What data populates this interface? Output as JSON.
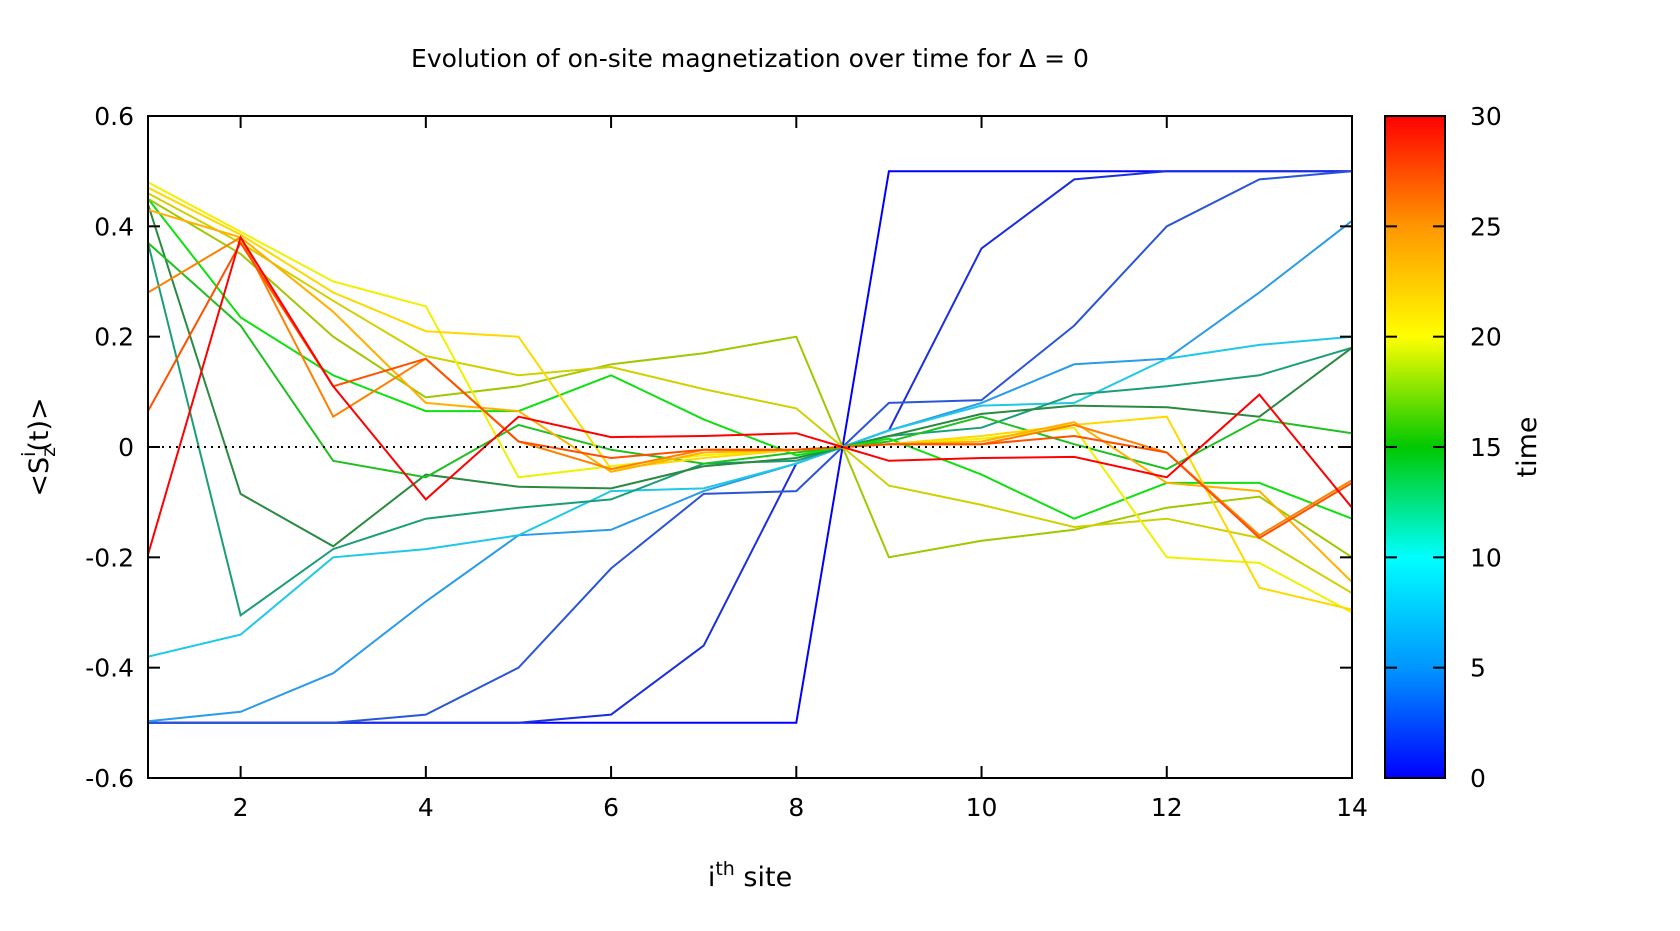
{
  "chart_data": {
    "type": "line",
    "title": "Evolution of on-site magnetization over time for Δ = 0",
    "xlabel": {
      "base": "i",
      "sup": "th",
      "rest": " site"
    },
    "ylabel": {
      "pre": "<S",
      "sub": "z",
      "sup": "i",
      "post": "(t)>"
    },
    "xlim": [
      1,
      14
    ],
    "ylim": [
      -0.6,
      0.6
    ],
    "xticks": [
      "2",
      "4",
      "6",
      "8",
      "10",
      "12",
      "14"
    ],
    "yticks": [
      "-0.6",
      "-0.4",
      "-0.2",
      "0",
      "0.2",
      "0.4",
      "0.6"
    ],
    "zero_line": true,
    "colorbar": {
      "label": "time",
      "range": [
        0,
        30
      ],
      "ticks": [
        "0",
        "5",
        "10",
        "15",
        "20",
        "25",
        "30"
      ],
      "stops": [
        "#0000ff",
        "#0096ff",
        "#00ffff",
        "#00c800",
        "#ffff00",
        "#ff9600",
        "#ff0000"
      ]
    },
    "x": [
      1,
      2,
      3,
      4,
      5,
      6,
      7,
      8,
      8.5,
      9,
      10,
      11,
      12,
      13,
      14
    ],
    "series": [
      {
        "time": 0,
        "color": "#0000ff",
        "values": [
          -0.5,
          -0.5,
          -0.5,
          -0.5,
          -0.5,
          -0.5,
          -0.5,
          -0.5,
          0,
          0.5,
          0.5,
          0.5,
          0.5,
          0.5,
          0.5
        ]
      },
      {
        "time": 2,
        "color": "#1a2ee0",
        "values": [
          -0.5,
          -0.5,
          -0.5,
          -0.5,
          -0.5,
          -0.485,
          -0.36,
          -0.03,
          0,
          0.03,
          0.36,
          0.485,
          0.5,
          0.5,
          0.5
        ]
      },
      {
        "time": 4,
        "color": "#2a55d8",
        "values": [
          -0.5,
          -0.5,
          -0.5,
          -0.485,
          -0.4,
          -0.22,
          -0.085,
          -0.08,
          0,
          0.08,
          0.085,
          0.22,
          0.4,
          0.485,
          0.5
        ]
      },
      {
        "time": 6,
        "color": "#2a9be8",
        "values": [
          -0.497,
          -0.48,
          -0.41,
          -0.28,
          -0.16,
          -0.15,
          -0.08,
          -0.03,
          0,
          0.03,
          0.08,
          0.15,
          0.16,
          0.28,
          0.41
        ]
      },
      {
        "time": 7,
        "color": "#20c8e8",
        "values": [
          -0.38,
          -0.34,
          -0.2,
          -0.185,
          -0.16,
          -0.08,
          -0.075,
          -0.03,
          0,
          0.03,
          0.075,
          0.08,
          0.16,
          0.185,
          0.2
        ]
      },
      {
        "time": 10,
        "color": "#1a9e78",
        "values": [
          0.37,
          -0.305,
          -0.185,
          -0.13,
          -0.11,
          -0.095,
          -0.03,
          -0.025,
          0,
          0.02,
          0.035,
          0.095,
          0.11,
          0.13,
          0.18
        ]
      },
      {
        "time": 12,
        "color": "#2a8a40",
        "values": [
          0.44,
          -0.085,
          -0.18,
          -0.05,
          -0.072,
          -0.075,
          -0.035,
          -0.02,
          0,
          0.02,
          0.06,
          0.075,
          0.072,
          0.055,
          0.18
        ]
      },
      {
        "time": 14,
        "color": "#20c020",
        "values": [
          0.37,
          0.22,
          -0.025,
          -0.055,
          0.04,
          -0.005,
          -0.03,
          -0.01,
          0,
          0.01,
          0.055,
          0.005,
          -0.04,
          0.05,
          0.025
        ]
      },
      {
        "time": 16,
        "color": "#10e010",
        "values": [
          0.45,
          0.235,
          0.13,
          0.065,
          0.065,
          0.13,
          0.05,
          -0.015,
          0,
          0.015,
          -0.05,
          -0.13,
          -0.065,
          -0.065,
          -0.13
        ]
      },
      {
        "time": 19,
        "color": "#a0c800",
        "values": [
          0.45,
          0.35,
          0.2,
          0.09,
          0.11,
          0.15,
          0.17,
          0.2,
          0,
          -0.2,
          -0.17,
          -0.15,
          -0.11,
          -0.09,
          -0.2
        ]
      },
      {
        "time": 21,
        "color": "#d0d000",
        "values": [
          0.46,
          0.37,
          0.265,
          0.165,
          0.13,
          0.145,
          0.105,
          0.07,
          0,
          -0.07,
          -0.105,
          -0.145,
          -0.13,
          -0.165,
          -0.265
        ]
      },
      {
        "time": 23,
        "color": "#f0f000",
        "values": [
          0.48,
          0.39,
          0.3,
          0.255,
          -0.055,
          -0.035,
          -0.015,
          -0.005,
          0,
          0.005,
          0.015,
          0.035,
          -0.2,
          -0.21,
          -0.3
        ]
      },
      {
        "time": 24,
        "color": "#ffd800",
        "values": [
          0.47,
          0.385,
          0.28,
          0.21,
          0.2,
          -0.04,
          -0.02,
          -0.005,
          0,
          0.005,
          0.02,
          0.04,
          0.055,
          -0.255,
          -0.295
        ]
      },
      {
        "time": 26,
        "color": "#ffb000",
        "values": [
          0.43,
          0.38,
          0.245,
          0.08,
          0.065,
          -0.045,
          -0.01,
          -0.005,
          0,
          0.005,
          0.01,
          0.045,
          -0.065,
          -0.08,
          -0.245
        ]
      },
      {
        "time": 27,
        "color": "#ff8000",
        "values": [
          0.28,
          0.38,
          0.055,
          0.16,
          0.01,
          -0.04,
          -0.005,
          -0.005,
          0,
          0.005,
          0.005,
          0.04,
          -0.01,
          -0.16,
          -0.06
        ]
      },
      {
        "time": 28,
        "color": "#ff5000",
        "values": [
          0.065,
          0.37,
          0.11,
          0.16,
          0.01,
          -0.02,
          -0.005,
          -0.005,
          0,
          0.005,
          0.005,
          0.02,
          -0.01,
          -0.165,
          -0.065
        ]
      },
      {
        "time": 30,
        "color": "#ff0000",
        "values": [
          -0.195,
          0.38,
          0.11,
          -0.095,
          0.055,
          0.018,
          0.02,
          0.025,
          0,
          -0.025,
          -0.02,
          -0.018,
          -0.055,
          0.095,
          -0.11
        ]
      }
    ]
  }
}
